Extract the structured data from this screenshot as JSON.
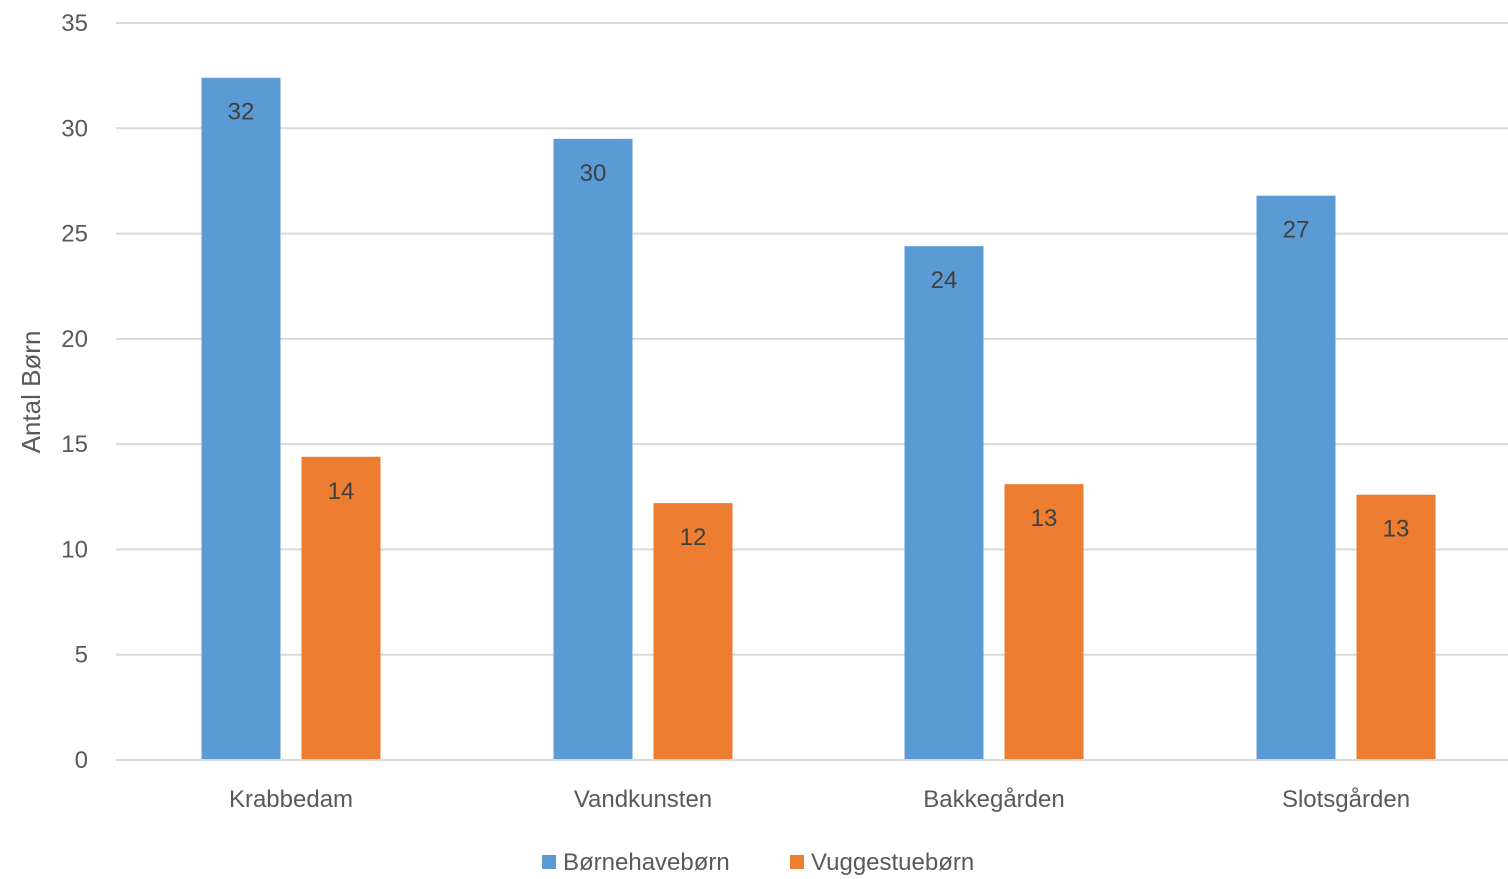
{
  "chart_data": {
    "type": "bar",
    "title": "",
    "xlabel": "",
    "ylabel": "Antal Børn",
    "ylim": [
      0,
      35
    ],
    "yticks": [
      0,
      5,
      10,
      15,
      20,
      25,
      30,
      35
    ],
    "grid": true,
    "legend_position": "bottom",
    "categories": [
      "Krabbedam",
      "Vandkunsten",
      "Bakkegården",
      "Slotsgården"
    ],
    "series": [
      {
        "name": "Børnehavebørn",
        "color": "#5b9bd5",
        "values": [
          32.4,
          29.5,
          24.4,
          26.8
        ],
        "labels": [
          "32",
          "30",
          "24",
          "27"
        ]
      },
      {
        "name": "Vuggestuebørn",
        "color": "#ed7d31",
        "values": [
          14.4,
          12.2,
          13.1,
          12.6
        ],
        "labels": [
          "14",
          "12",
          "13",
          "13"
        ]
      }
    ]
  }
}
